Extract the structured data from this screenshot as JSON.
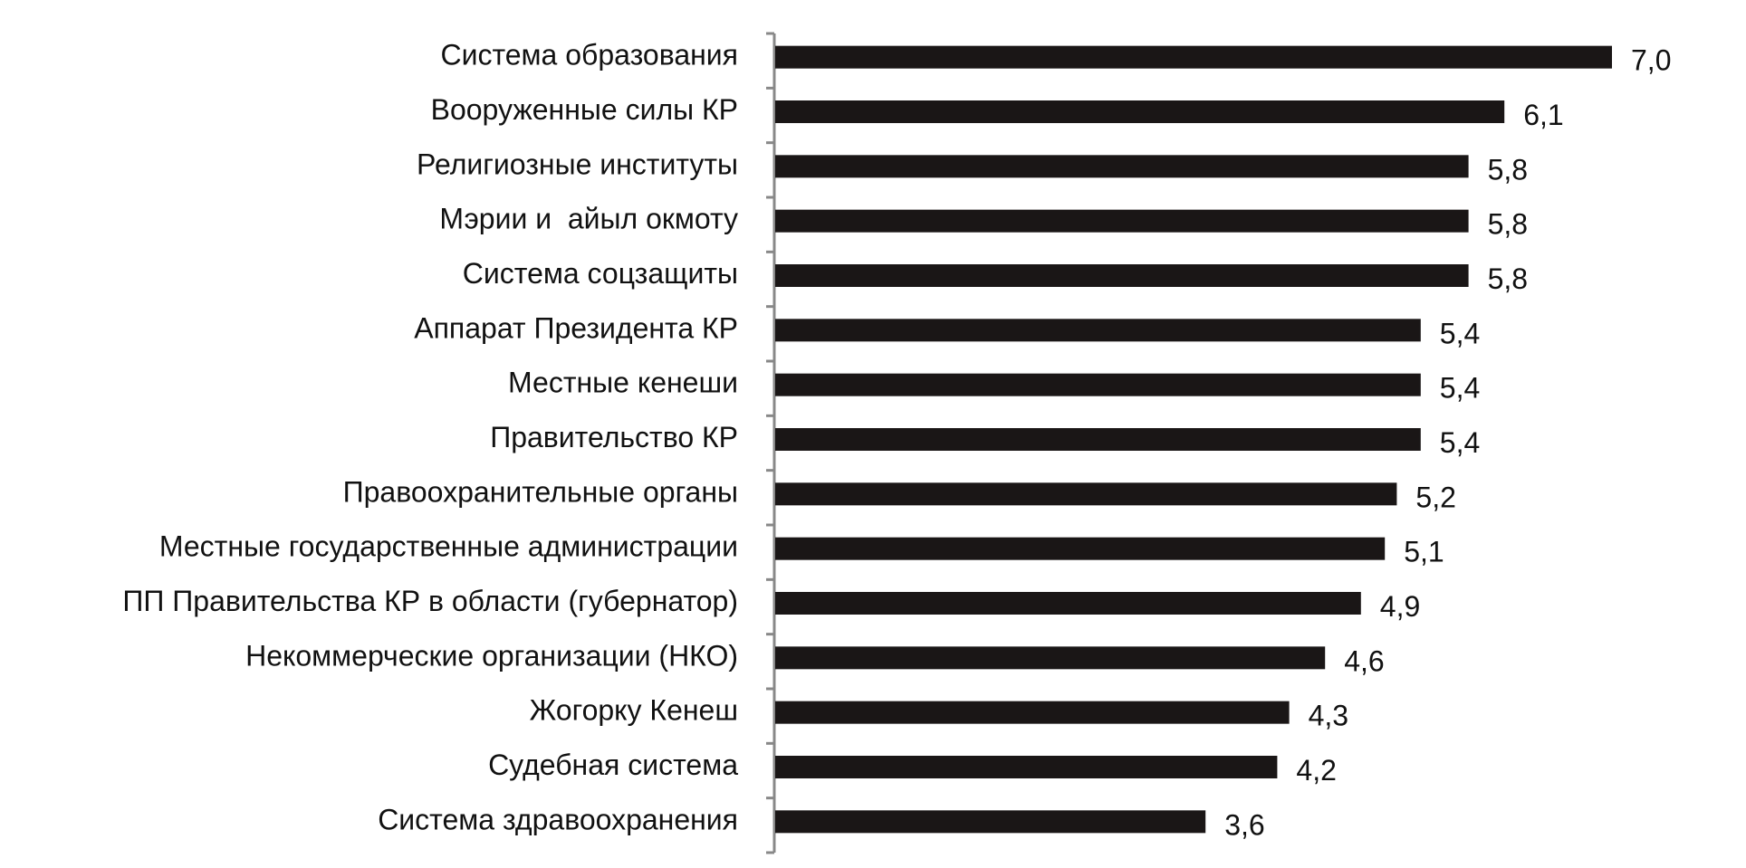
{
  "chart_data": {
    "type": "hbar",
    "categories": [
      "Система образования",
      "Вооруженные силы КР",
      "Религиозные институты",
      "Мэрии и  айыл окмоту",
      "Система соцзащиты",
      "Аппарат Президента КР",
      "Местные кенеши",
      "Правительство КР",
      "Правоохранительные органы",
      "Местные государственные администрации",
      "ПП Правительства КР в области (губернатор)",
      "Некоммерческие организации (НКО)",
      "Жогорку Кенеш",
      "Судебная система",
      "Система здравоохранения"
    ],
    "values": [
      7.0,
      6.1,
      5.8,
      5.8,
      5.8,
      5.4,
      5.4,
      5.4,
      5.2,
      5.1,
      4.9,
      4.6,
      4.3,
      4.2,
      3.6
    ],
    "value_labels": [
      "7,0",
      "6,1",
      "5,8",
      "5,8",
      "5,8",
      "5,4",
      "5,4",
      "5,4",
      "5,2",
      "5,1",
      "4,9",
      "4,6",
      "4,3",
      "4,2",
      "3,6"
    ],
    "color": "#1a1616"
  }
}
